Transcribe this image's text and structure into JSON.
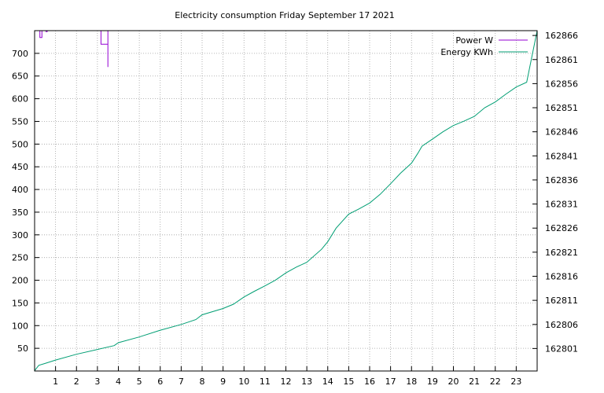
{
  "chart_data": {
    "type": "line",
    "title": "Electricity consumption Friday September 17 2021",
    "xlabel": "",
    "ylabel": "",
    "y2label": "",
    "xlim": [
      0,
      24
    ],
    "ylim": [
      0,
      750
    ],
    "y2lim": [
      162796.33,
      162867.0
    ],
    "x_ticks": [
      1,
      2,
      3,
      4,
      5,
      6,
      7,
      8,
      9,
      10,
      11,
      12,
      13,
      14,
      15,
      16,
      17,
      18,
      19,
      20,
      21,
      22,
      23
    ],
    "y_ticks": [
      50,
      100,
      150,
      200,
      250,
      300,
      350,
      400,
      450,
      500,
      550,
      600,
      650,
      700
    ],
    "y2_ticks": [
      162801,
      162806,
      162811,
      162816,
      162821,
      162826,
      162831,
      162836,
      162841,
      162846,
      162851,
      162856,
      162861,
      162866
    ],
    "grid": true,
    "legend_position": "top-right",
    "series": [
      {
        "name": "Power W",
        "color": "#9400d3",
        "axis": "y",
        "points": [
          [
            0.25,
            750
          ],
          [
            0.25,
            735
          ],
          [
            0.35,
            735
          ],
          [
            0.35,
            750
          ],
          [
            0.55,
            750
          ],
          [
            0.55,
            748
          ],
          [
            0.6,
            748
          ],
          [
            0.6,
            750
          ],
          [
            3.17,
            750
          ],
          [
            3.17,
            720
          ],
          [
            3.5,
            720
          ],
          [
            3.5,
            670
          ],
          [
            3.5,
            750
          ]
        ]
      },
      {
        "name": "Energy KWh",
        "color": "#009e73",
        "axis": "y2",
        "points": [
          [
            0.0,
            162796.4
          ],
          [
            0.2,
            162797.5
          ],
          [
            0.5,
            162797.9
          ],
          [
            1.0,
            162798.6
          ],
          [
            2.0,
            162799.8
          ],
          [
            3.0,
            162800.8
          ],
          [
            3.8,
            162801.6
          ],
          [
            4.0,
            162802.2
          ],
          [
            5.0,
            162803.4
          ],
          [
            6.0,
            162804.8
          ],
          [
            7.0,
            162806.0
          ],
          [
            7.7,
            162807.0
          ],
          [
            8.0,
            162808.0
          ],
          [
            9.0,
            162809.3
          ],
          [
            9.5,
            162810.2
          ],
          [
            10.0,
            162811.7
          ],
          [
            10.5,
            162812.9
          ],
          [
            11.0,
            162814.0
          ],
          [
            11.5,
            162815.2
          ],
          [
            12.0,
            162816.7
          ],
          [
            12.5,
            162817.9
          ],
          [
            13.0,
            162818.9
          ],
          [
            13.7,
            162821.6
          ],
          [
            14.0,
            162823.2
          ],
          [
            14.4,
            162826.0
          ],
          [
            15.0,
            162828.9
          ],
          [
            15.5,
            162830.0
          ],
          [
            16.0,
            162831.2
          ],
          [
            16.5,
            162833.0
          ],
          [
            17.0,
            162835.2
          ],
          [
            17.5,
            162837.5
          ],
          [
            18.0,
            162839.5
          ],
          [
            18.3,
            162841.5
          ],
          [
            18.5,
            162843.0
          ],
          [
            19.0,
            162844.5
          ],
          [
            19.5,
            162846.0
          ],
          [
            20.0,
            162847.3
          ],
          [
            20.5,
            162848.2
          ],
          [
            21.0,
            162849.2
          ],
          [
            21.5,
            162851.0
          ],
          [
            22.0,
            162852.2
          ],
          [
            22.5,
            162853.8
          ],
          [
            23.0,
            162855.3
          ],
          [
            23.5,
            162856.3
          ],
          [
            24.0,
            162867.0
          ]
        ]
      }
    ]
  }
}
